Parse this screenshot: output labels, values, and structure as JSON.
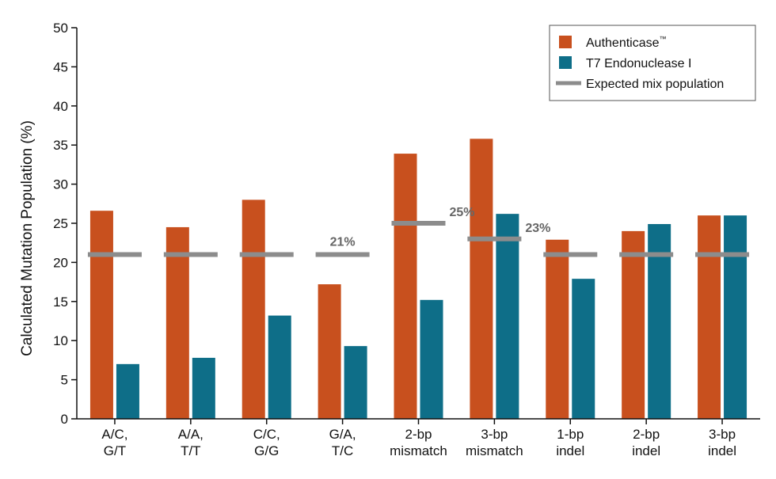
{
  "chart_data": {
    "type": "bar",
    "ylabel": "Calculated Mutation Population (%)",
    "ylim": [
      0,
      50
    ],
    "yticks": [
      0,
      5,
      10,
      15,
      20,
      25,
      30,
      35,
      40,
      45,
      50
    ],
    "categories": [
      [
        "A/C,",
        "G/T"
      ],
      [
        "A/A,",
        "T/T"
      ],
      [
        "C/C,",
        "G/G"
      ],
      [
        "G/A,",
        "T/C"
      ],
      [
        "2-bp",
        "mismatch"
      ],
      [
        "3-bp",
        "mismatch"
      ],
      [
        "1-bp",
        "indel"
      ],
      [
        "2-bp",
        "indel"
      ],
      [
        "3-bp",
        "indel"
      ]
    ],
    "series": [
      {
        "name": "Authenticase™",
        "color": "#c8501e",
        "values": [
          26.6,
          24.5,
          28.0,
          17.2,
          33.9,
          35.8,
          22.9,
          24.0,
          26.0
        ]
      },
      {
        "name": "T7 Endonuclease I",
        "color": "#0e6e88",
        "values": [
          7.0,
          7.8,
          13.2,
          9.3,
          15.2,
          26.2,
          17.9,
          24.9,
          26.0
        ]
      }
    ],
    "expected": {
      "name": "Expected mix population",
      "color": "#8c8c8c",
      "values": [
        21,
        21,
        21,
        21,
        25,
        23,
        21,
        21,
        21
      ]
    },
    "annotations": [
      {
        "category_index": 3,
        "text": "21%"
      },
      {
        "category_index": 4,
        "text": "25%"
      },
      {
        "category_index": 5,
        "text": "23%"
      }
    ],
    "legend": {
      "position": "top-right",
      "items": [
        {
          "label": "Authenticase",
          "superscript": "™",
          "kind": "box",
          "color": "#c8501e"
        },
        {
          "label": "T7 Endonuclease I",
          "superscript": "",
          "kind": "box",
          "color": "#0e6e88"
        },
        {
          "label": "Expected mix population",
          "superscript": "",
          "kind": "line",
          "color": "#8c8c8c"
        }
      ]
    }
  }
}
